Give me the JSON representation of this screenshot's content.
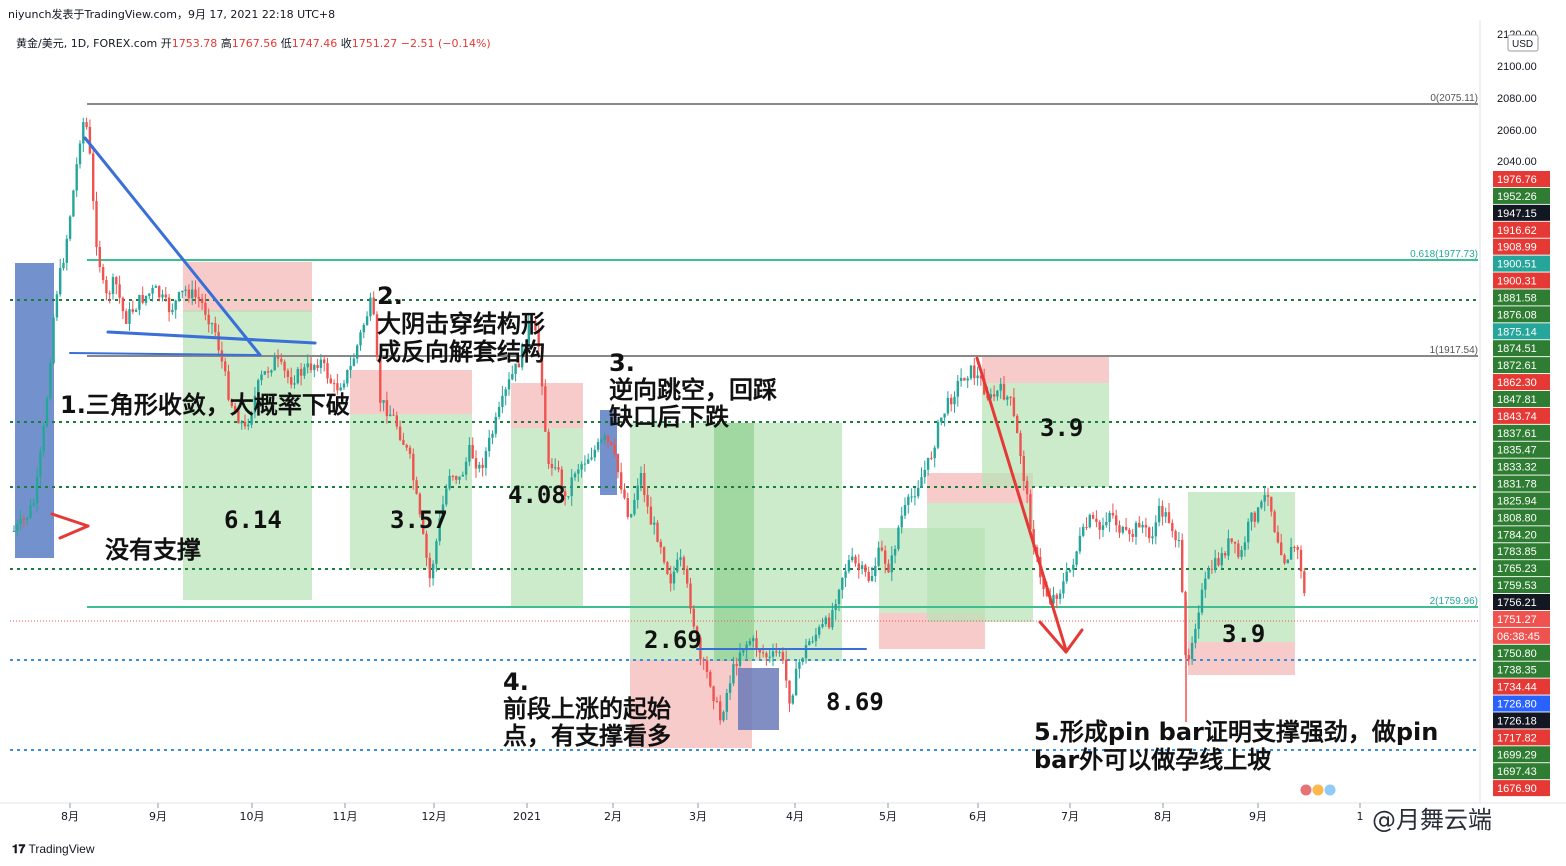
{
  "header": {
    "publisher_line": "niyunch发表于TradingView.com，9月 17, 2021 22:18 UTC+8",
    "symbol": "黄金/美元, 1D, FOREX.com",
    "open_label": "开",
    "open": "1753.78",
    "high_label": "高",
    "high": "1767.56",
    "low_label": "低",
    "low": "1747.46",
    "close_label": "收",
    "close": "1751.27",
    "change": "−2.51 (−0.14%)"
  },
  "price_axis": {
    "currency": "USD",
    "ticks": [
      "2120.00",
      "2100.00",
      "2080.00",
      "2060.00",
      "2040.00"
    ],
    "tags": [
      {
        "label": "1976.76",
        "color": "#e53935"
      },
      {
        "label": "1952.26",
        "color": "#2e7d32"
      },
      {
        "label": "1947.15",
        "color": "#131722"
      },
      {
        "label": "1916.62",
        "color": "#e53935"
      },
      {
        "label": "1908.99",
        "color": "#e53935"
      },
      {
        "label": "1900.51",
        "color": "#26a69a"
      },
      {
        "label": "1900.31",
        "color": "#e53935"
      },
      {
        "label": "1881.58",
        "color": "#2e7d32"
      },
      {
        "label": "1876.08",
        "color": "#2e7d32"
      },
      {
        "label": "1875.14",
        "color": "#26a69a"
      },
      {
        "label": "1874.51",
        "color": "#2e7d32"
      },
      {
        "label": "1872.61",
        "color": "#2e7d32"
      },
      {
        "label": "1862.30",
        "color": "#e53935"
      },
      {
        "label": "1847.81",
        "color": "#2e7d32"
      },
      {
        "label": "1843.74",
        "color": "#e53935"
      },
      {
        "label": "1837.61",
        "color": "#2e7d32"
      },
      {
        "label": "1835.47",
        "color": "#2e7d32"
      },
      {
        "label": "1833.32",
        "color": "#2e7d32"
      },
      {
        "label": "1831.78",
        "color": "#2e7d32"
      },
      {
        "label": "1825.94",
        "color": "#2e7d32"
      },
      {
        "label": "1808.80",
        "color": "#2e7d32"
      },
      {
        "label": "1784.20",
        "color": "#2e7d32"
      },
      {
        "label": "1783.85",
        "color": "#2e7d32"
      },
      {
        "label": "1765.23",
        "color": "#2e7d32"
      },
      {
        "label": "1759.53",
        "color": "#2e7d32"
      },
      {
        "label": "1756.21",
        "color": "#131722"
      },
      {
        "label": "1751.27",
        "color": "#ef5350"
      },
      {
        "label": "06:38:45",
        "color": "#ef5350"
      },
      {
        "label": "1750.80",
        "color": "#2e7d32"
      },
      {
        "label": "1738.35",
        "color": "#2e7d32"
      },
      {
        "label": "1734.44",
        "color": "#e53935"
      },
      {
        "label": "1726.80",
        "color": "#2962ff"
      },
      {
        "label": "1726.18",
        "color": "#131722"
      },
      {
        "label": "1717.82",
        "color": "#e53935"
      },
      {
        "label": "1699.29",
        "color": "#2e7d32"
      },
      {
        "label": "1697.43",
        "color": "#2e7d32"
      },
      {
        "label": "1676.90",
        "color": "#e53935"
      }
    ]
  },
  "time_axis": {
    "labels": [
      "8月",
      "9月",
      "10月",
      "11月",
      "12月",
      "2021",
      "2月",
      "3月",
      "4月",
      "5月",
      "6月",
      "7月",
      "8月",
      "9月",
      "1"
    ]
  },
  "fib_labels": [
    "0(2075.11)",
    "0.618(1977.73)",
    "1(1917.54)",
    "2(1759.96)"
  ],
  "annotations": {
    "a1": "1.三角形收敛，大概率下破",
    "a1b": "没有支撑",
    "a2_line1": "2.",
    "a2_line2": "大阴击穿结构形",
    "a2_line3": "成反向解套结构",
    "a3_line1": "3.",
    "a3_line2": "逆向跳空，回踩",
    "a3_line3": "缺口后下跌",
    "a4_line1": "4.",
    "a4_line2": "前段上涨的起始",
    "a4_line3": "点，有支撑看多",
    "a5_line1": "5.形成pin bar证明支撑强劲，做pin",
    "a5_line2": "bar外可以做孕线上坡"
  },
  "box_values": [
    "6.14",
    "3.57",
    "4.08",
    "2.69",
    "8.69",
    "3.9",
    "3.9"
  ],
  "footer": {
    "brand": "TradingView",
    "watermark": "@月舞云端"
  },
  "chart_data": {
    "type": "candlestick",
    "title": "黄金/美元, 1D, FOREX.com",
    "x_labels": [
      "8月",
      "9月",
      "10月",
      "11月",
      "12月",
      "2021",
      "2月",
      "3月",
      "4月",
      "5月",
      "6月",
      "7月",
      "8月",
      "9月"
    ],
    "last_ohlc": {
      "open": 1753.78,
      "high": 1767.56,
      "low": 1747.46,
      "close": 1751.27
    },
    "fib_levels": [
      {
        "ratio": "0",
        "price": 2075.11
      },
      {
        "ratio": "0.618",
        "price": 1977.73
      },
      {
        "ratio": "1",
        "price": 1917.54
      },
      {
        "ratio": "2",
        "price": 1759.96
      }
    ],
    "price_axis_ticks": [
      2120,
      2100,
      2080,
      2060,
      2040
    ],
    "ylim": [
      1640,
      2125
    ]
  }
}
